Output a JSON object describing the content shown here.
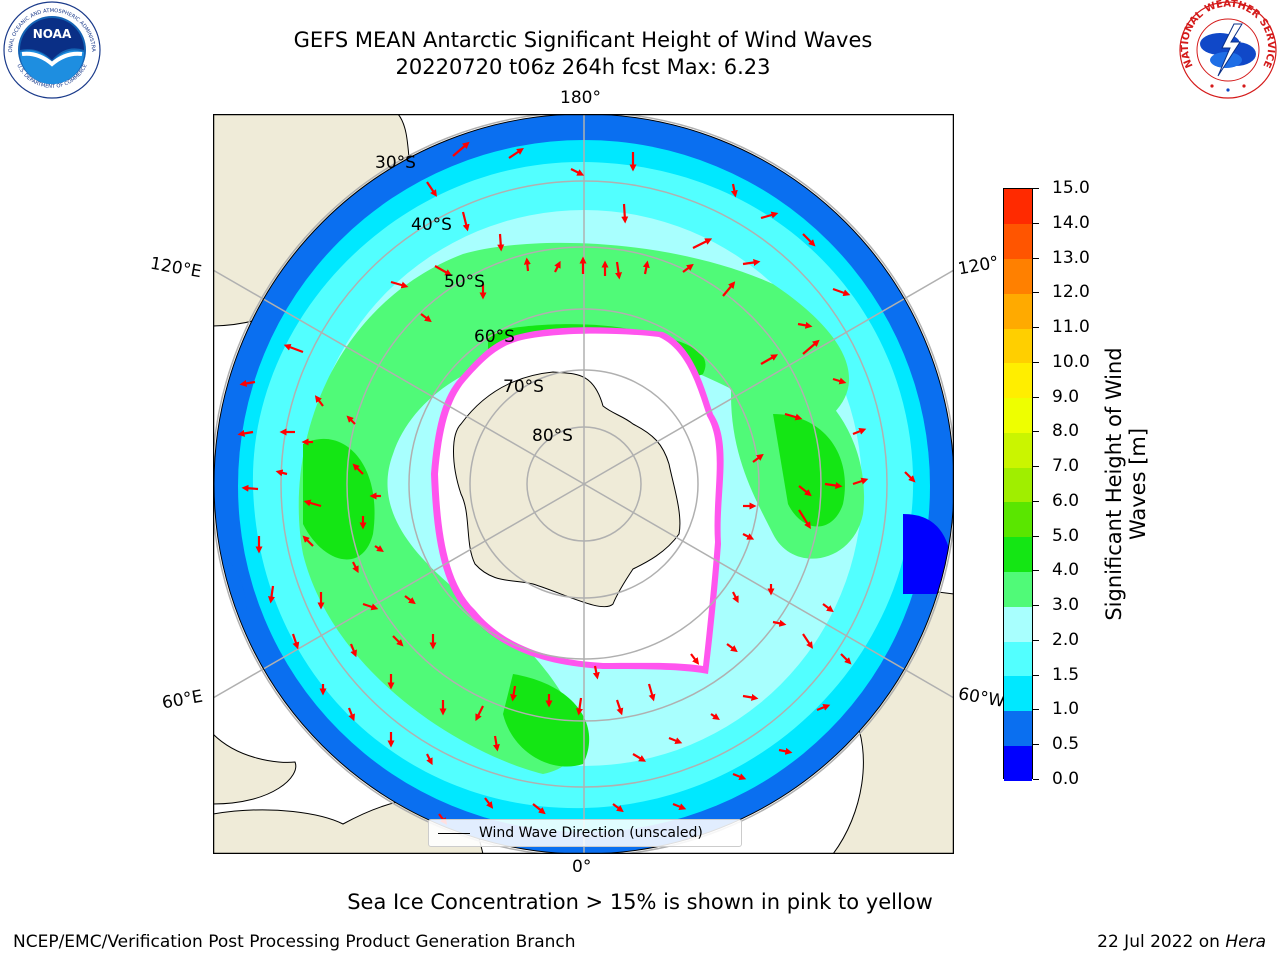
{
  "header": {
    "title_line1": "GEFS MEAN Antarctic Significant Height of Wind Waves",
    "title_line2": "20220720 t06z 264h fcst   Max: 6.23"
  },
  "map": {
    "lon_labels": {
      "top": "180°",
      "bottom": "0°",
      "upper_left": "120°E",
      "lower_left": "60°E",
      "upper_right": "120°",
      "lower_right": "60°W"
    },
    "lat_labels": [
      "30°S",
      "40°S",
      "50°S",
      "60°S",
      "70°S",
      "80°S"
    ],
    "legend_label": "Wind Wave Direction (unscaled)",
    "colors": {
      "land": "#efebd8",
      "ice": "#ffffff",
      "arrow": "#ff0000",
      "wave_lt_1": "#0a6ff0",
      "wave_1_1_5": "#00e8ff",
      "wave_1_5_2": "#52ffff",
      "wave_2_3": "#a8fffe",
      "wave_3_4": "#50fa78",
      "wave_4_5": "#14e614"
    }
  },
  "colorbar": {
    "title_line1": "Significant Height of Wind",
    "title_line2": "Waves [m]",
    "ticks": [
      "0.0",
      "0.5",
      "1.0",
      "1.5",
      "2.0",
      "3.0",
      "4.0",
      "5.0",
      "6.0",
      "7.0",
      "8.0",
      "9.0",
      "10.0",
      "11.0",
      "12.0",
      "13.0",
      "14.0",
      "15.0"
    ],
    "colors": [
      "#0000ff",
      "#0a6ff0",
      "#00e8ff",
      "#52ffff",
      "#a8fffe",
      "#50fa78",
      "#14e614",
      "#5ae600",
      "#a0ee00",
      "#caf500",
      "#eeff00",
      "#ffee00",
      "#ffcf00",
      "#ffaa00",
      "#ff8000",
      "#ff5500",
      "#ff2a00"
    ]
  },
  "footer": {
    "subtitle": "Sea Ice Concentration > 15% is shown in pink to yellow",
    "left": "NCEP/EMC/Verification Post Processing Product Generation Branch",
    "right_prefix": "22 Jul 2022 on ",
    "right_system": "Hera"
  },
  "logos": {
    "noaa_text": "NOAA",
    "noaa_ring_top": "NATIONAL OCEANIC AND ATMOSPHERIC ADMINISTRATION",
    "noaa_ring_bottom": "U.S. DEPARTMENT OF COMMERCE",
    "nws_ring": "NATIONAL WEATHER SERVICE"
  }
}
